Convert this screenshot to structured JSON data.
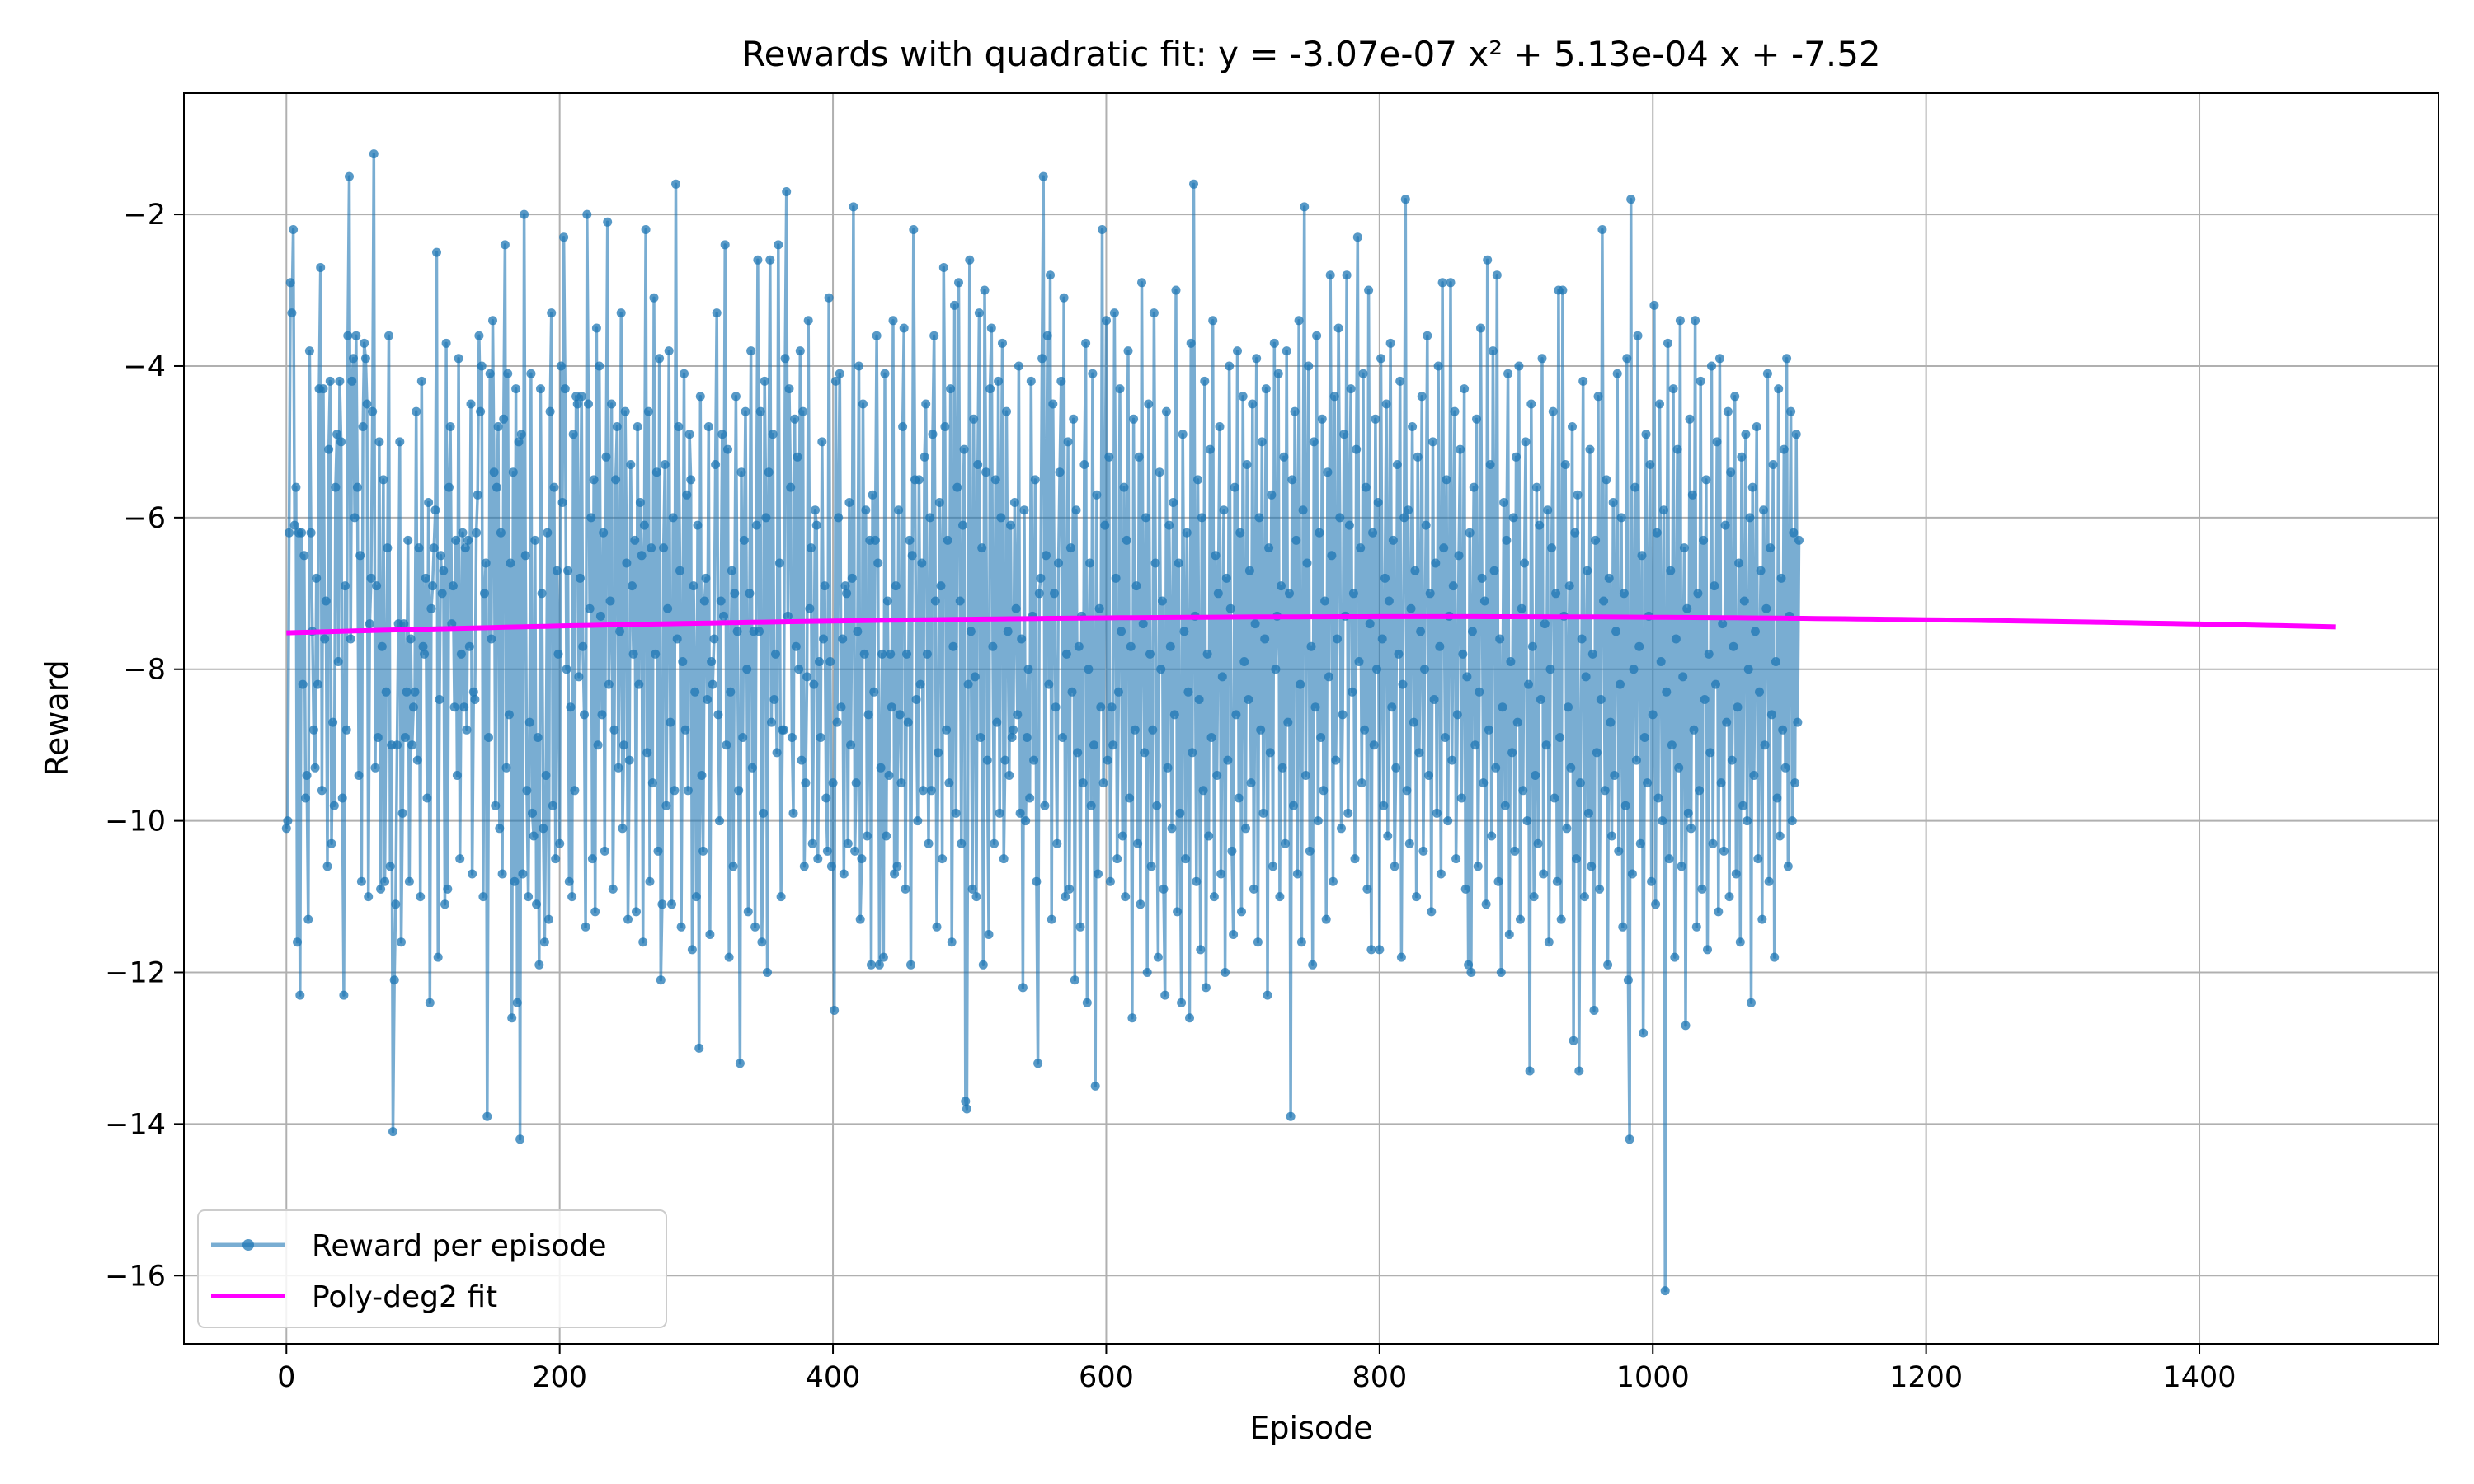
{
  "chart_data": {
    "type": "line",
    "title": "Rewards with quadratic fit: y = -3.07e-07 x² + 5.13e-04 x + -7.52",
    "xlabel": "Episode",
    "ylabel": "Reward",
    "xlim": [
      -75,
      1575
    ],
    "ylim": [
      -16.9,
      -0.4
    ],
    "xticks": [
      0,
      200,
      400,
      600,
      800,
      1000,
      1200,
      1400
    ],
    "yticks": [
      -16,
      -14,
      -12,
      -10,
      -8,
      -6,
      -4,
      -2
    ],
    "xtick_labels": [
      "0",
      "200",
      "400",
      "600",
      "800",
      "1000",
      "1200",
      "1400"
    ],
    "ytick_labels": [
      "−16",
      "−14",
      "−12",
      "−10",
      "−8",
      "−6",
      "−4",
      "−2"
    ],
    "grid": true,
    "legend_position": "lower-left",
    "series": [
      {
        "name": "Reward per episode",
        "kind": "line-with-markers",
        "color": "#1f77b4",
        "x_start": 0,
        "x_step": 1,
        "values": [
          -10.1,
          -10.0,
          -6.2,
          -2.9,
          -3.3,
          -2.2,
          -6.1,
          -5.6,
          -11.6,
          -6.2,
          -12.3,
          -6.2,
          -8.2,
          -6.5,
          -9.7,
          -9.4,
          -11.3,
          -3.8,
          -6.2,
          -7.5,
          -8.8,
          -9.3,
          -6.8,
          -8.2,
          -4.3,
          -2.7,
          -9.6,
          -4.3,
          -7.6,
          -7.1,
          -10.6,
          -5.1,
          -4.2,
          -10.3,
          -8.7,
          -9.8,
          -5.6,
          -4.9,
          -7.9,
          -4.2,
          -5.0,
          -9.7,
          -12.3,
          -6.9,
          -8.8,
          -3.6,
          -1.5,
          -7.6,
          -4.2,
          -3.9,
          -6.0,
          -3.6,
          -5.6,
          -9.4,
          -6.5,
          -10.8,
          -4.8,
          -3.7,
          -3.9,
          -4.5,
          -11.0,
          -7.4,
          -6.8,
          -4.6,
          -1.2,
          -9.3,
          -6.9,
          -8.9,
          -5.0,
          -10.9,
          -7.7,
          -5.5,
          -10.8,
          -8.3,
          -6.4,
          -3.6,
          -10.6,
          -9.0,
          -14.1,
          -12.1,
          -11.1,
          -9.0,
          -7.4,
          -5.0,
          -11.6,
          -9.9,
          -7.4,
          -8.9,
          -8.3,
          -6.3,
          -10.8,
          -7.6,
          -9.0,
          -8.5,
          -8.3,
          -4.6,
          -9.2,
          -6.4,
          -11.0,
          -4.2,
          -7.7,
          -7.8,
          -6.8,
          -9.7,
          -5.8,
          -12.4,
          -7.2,
          -6.9,
          -6.4,
          -5.9,
          -2.5,
          -11.8,
          -8.4,
          -6.5,
          -7.0,
          -6.7,
          -11.1,
          -3.7,
          -10.9,
          -5.6,
          -4.8,
          -7.4,
          -6.9,
          -8.5,
          -6.3,
          -9.4,
          -3.9,
          -10.5,
          -7.8,
          -6.2,
          -8.5,
          -6.4,
          -8.8,
          -6.3,
          -7.7,
          -4.5,
          -10.7,
          -8.3,
          -8.4,
          -6.2,
          -5.7,
          -3.6,
          -4.6,
          -4.0,
          -11.0,
          -7.0,
          -6.6,
          -13.9,
          -8.9,
          -4.1,
          -7.6,
          -3.4,
          -5.4,
          -9.8,
          -5.6,
          -4.8,
          -10.1,
          -6.2,
          -10.7,
          -4.7,
          -2.4,
          -9.3,
          -4.1,
          -8.6,
          -6.6,
          -12.6,
          -5.4,
          -10.8,
          -4.3,
          -12.4,
          -5.0,
          -14.2,
          -4.9,
          -10.7,
          -2.0,
          -6.5,
          -9.6,
          -11.0,
          -8.7,
          -4.1,
          -9.9,
          -10.2,
          -6.3,
          -11.1,
          -8.9,
          -11.9,
          -4.3,
          -7.0,
          -10.1,
          -11.6,
          -9.4,
          -6.2,
          -11.3,
          -4.6,
          -3.3,
          -9.8,
          -5.6,
          -10.5,
          -6.7,
          -7.8,
          -10.3,
          -4.0,
          -5.8,
          -2.3,
          -4.3,
          -8.0,
          -6.7,
          -10.8,
          -8.5,
          -11.0,
          -4.9,
          -9.6,
          -4.4,
          -4.5,
          -8.1,
          -6.8,
          -4.4,
          -7.7,
          -8.6,
          -11.4,
          -2.0,
          -4.5,
          -7.2,
          -6.0,
          -10.5,
          -5.5,
          -11.2,
          -3.5,
          -9.0,
          -4.0,
          -7.3,
          -8.6,
          -6.2,
          -10.4,
          -5.2,
          -2.1,
          -8.2,
          -7.1,
          -4.5,
          -10.9,
          -8.8,
          -5.5,
          -4.8,
          -9.3,
          -7.5,
          -3.3,
          -10.1,
          -9.0,
          -4.6,
          -6.6,
          -11.3,
          -9.2,
          -5.3,
          -6.9,
          -7.8,
          -6.3,
          -11.2,
          -4.8,
          -8.2,
          -5.8,
          -6.5,
          -11.6,
          -6.1,
          -2.2,
          -9.1,
          -4.6,
          -10.8,
          -6.4,
          -9.5,
          -3.1,
          -7.8,
          -5.4,
          -10.4,
          -3.9,
          -12.1,
          -11.1,
          -6.4,
          -5.3,
          -9.8,
          -7.2,
          -3.8,
          -8.7,
          -11.1,
          -6.0,
          -9.6,
          -1.6,
          -7.6,
          -4.8,
          -6.7,
          -11.4,
          -7.9,
          -4.1,
          -8.8,
          -5.7,
          -9.6,
          -4.9,
          -5.5,
          -11.7,
          -6.9,
          -8.3,
          -11.0,
          -6.1,
          -13.0,
          -4.4,
          -9.4,
          -10.4,
          -7.1,
          -6.8,
          -8.4,
          -4.8,
          -11.5,
          -7.9,
          -8.2,
          -7.6,
          -5.3,
          -3.3,
          -8.6,
          -10.0,
          -7.1,
          -4.9,
          -7.3,
          -2.4,
          -9.0,
          -5.1,
          -11.8,
          -8.3,
          -6.7,
          -10.6,
          -7.0,
          -4.4,
          -7.5,
          -9.6,
          -13.2,
          -5.4,
          -8.9,
          -6.3,
          -4.6,
          -8.0,
          -11.2,
          -7.0,
          -3.8,
          -9.3,
          -7.5,
          -11.4,
          -6.1,
          -2.6,
          -7.5,
          -4.6,
          -11.6,
          -9.9,
          -4.2,
          -6.0,
          -12.0,
          -5.4,
          -2.6,
          -8.7,
          -4.9,
          -8.4,
          -7.8,
          -9.1,
          -2.4,
          -6.6,
          -11.0,
          -8.8,
          -8.8,
          -3.9,
          -1.7,
          -7.3,
          -4.3,
          -5.6,
          -8.9,
          -9.9,
          -4.7,
          -7.7,
          -5.2,
          -8.0,
          -3.8,
          -9.2,
          -4.6,
          -10.6,
          -9.5,
          -8.1,
          -3.4,
          -7.2,
          -6.4,
          -10.3,
          -8.2,
          -5.9,
          -6.1,
          -10.5,
          -7.9,
          -8.9,
          -5.0,
          -7.6,
          -6.9,
          -9.7,
          -10.4,
          -3.1,
          -7.9,
          -10.6,
          -9.5,
          -12.5,
          -4.2,
          -8.7,
          -6.0,
          -4.1,
          -8.5,
          -7.6,
          -10.7,
          -6.9,
          -7.0,
          -10.3,
          -5.8,
          -9.0,
          -6.8,
          -1.9,
          -10.4,
          -9.5,
          -7.5,
          -4.0,
          -11.3,
          -10.5,
          -4.5,
          -7.8,
          -5.9,
          -10.2,
          -8.6,
          -6.3,
          -11.9,
          -5.7,
          -8.3,
          -6.3,
          -3.6,
          -6.6,
          -11.9,
          -9.3,
          -7.8,
          -11.8,
          -4.1,
          -10.2,
          -7.1,
          -9.4,
          -7.8,
          -8.5,
          -3.4,
          -10.7,
          -6.9,
          -10.6,
          -5.9,
          -8.6,
          -9.5,
          -4.8,
          -3.5,
          -10.9,
          -7.8,
          -8.7,
          -6.3,
          -11.9,
          -6.5,
          -2.2,
          -5.5,
          -8.4,
          -10.0,
          -5.5,
          -8.2,
          -6.6,
          -9.6,
          -5.2,
          -4.5,
          -7.8,
          -10.3,
          -6.0,
          -9.6,
          -4.9,
          -3.6,
          -7.1,
          -11.4,
          -9.1,
          -5.8,
          -6.9,
          -10.5,
          -2.7,
          -4.8,
          -8.8,
          -6.3,
          -9.5,
          -4.3,
          -11.6,
          -7.7,
          -3.2,
          -9.9,
          -5.6,
          -2.9,
          -7.1,
          -10.3,
          -6.1,
          -5.1,
          -13.7,
          -13.8,
          -8.2,
          -2.6,
          -7.5,
          -10.9,
          -4.7,
          -8.1,
          -11.0,
          -5.3,
          -3.3,
          -8.9,
          -6.4,
          -11.9,
          -3.0,
          -5.4,
          -9.2,
          -11.5,
          -4.3,
          -3.5,
          -7.7,
          -10.3,
          -5.5,
          -8.7,
          -4.2,
          -9.9,
          -6.0,
          -3.7,
          -10.5,
          -9.2,
          -4.6,
          -7.5,
          -9.4,
          -6.1,
          -8.9,
          -8.8,
          -5.8,
          -7.2,
          -8.6,
          -4.0,
          -9.9,
          -7.6,
          -12.2,
          -5.9,
          -10.0,
          -8.9,
          -8.0,
          -9.7,
          -4.2,
          -7.3,
          -9.2,
          -5.5,
          -10.8,
          -13.2,
          -7.0,
          -6.8,
          -3.9,
          -1.5,
          -9.8,
          -6.5,
          -3.6,
          -8.2,
          -2.8,
          -11.3,
          -4.5,
          -7.0,
          -8.5,
          -10.3,
          -6.6,
          -5.4,
          -4.2,
          -8.9,
          -3.1,
          -11.0,
          -7.8,
          -5.0,
          -10.9,
          -6.4,
          -8.3,
          -4.7,
          -12.1,
          -5.9,
          -9.1,
          -7.7,
          -11.4,
          -7.3,
          -9.5,
          -5.3,
          -3.7,
          -12.4,
          -8.0,
          -6.6,
          -9.8,
          -4.1,
          -9.0,
          -13.5,
          -5.7,
          -10.7,
          -7.2,
          -8.5,
          -2.2,
          -9.5,
          -6.1,
          -3.4,
          -9.2,
          -5.2,
          -10.8,
          -8.5,
          -9.0,
          -3.3,
          -6.8,
          -10.5,
          -8.3,
          -4.3,
          -7.5,
          -10.2,
          -5.6,
          -11.0,
          -6.3,
          -3.8,
          -9.7,
          -7.7,
          -12.6,
          -4.7,
          -8.8,
          -6.9,
          -10.3,
          -5.2,
          -11.1,
          -2.9,
          -7.4,
          -9.1,
          -6.0,
          -12.0,
          -4.5,
          -7.8,
          -10.6,
          -8.8,
          -3.3,
          -6.6,
          -9.8,
          -11.8,
          -5.4,
          -8.0,
          -7.1,
          -10.9,
          -12.3,
          -4.6,
          -9.3,
          -6.1,
          -7.7,
          -10.1,
          -5.8,
          -8.6,
          -3.0,
          -11.2,
          -6.6,
          -9.9,
          -12.4,
          -4.9,
          -7.5,
          -10.5,
          -6.2,
          -8.3,
          -12.6,
          -3.7,
          -9.1,
          -1.6,
          -7.3,
          -10.8,
          -5.5,
          -8.4,
          -11.7,
          -6.0,
          -9.6,
          -4.2,
          -12.2,
          -7.8,
          -10.2,
          -5.1,
          -8.9,
          -3.4,
          -11.0,
          -6.5,
          -9.4,
          -7.0,
          -4.8,
          -10.7,
          -8.1,
          -5.9,
          -12.0,
          -6.8,
          -9.2,
          -4.0,
          -7.2,
          -10.4,
          -11.5,
          -5.6,
          -8.6,
          -3.8,
          -9.7,
          -6.2,
          -11.2,
          -4.4,
          -7.9,
          -10.1,
          -5.3,
          -8.4,
          -6.7,
          -9.5,
          -4.5,
          -10.9,
          -7.4,
          -3.9,
          -11.6,
          -6.0,
          -8.8,
          -5.0,
          -9.9,
          -7.6,
          -4.3,
          -12.3,
          -6.4,
          -9.1,
          -5.7,
          -10.6,
          -3.7,
          -8.0,
          -7.3,
          -4.1,
          -11.0,
          -6.9,
          -9.3,
          -5.2,
          -10.3,
          -3.8,
          -8.7,
          -7.0,
          -13.9,
          -5.5,
          -9.8,
          -4.6,
          -6.3,
          -10.7,
          -3.4,
          -8.2,
          -11.6,
          -5.9,
          -1.9,
          -9.4,
          -6.6,
          -4.0,
          -10.4,
          -7.7,
          -11.9,
          -5.0,
          -8.5,
          -3.6,
          -10.0,
          -6.2,
          -8.9,
          -4.7,
          -9.6,
          -7.1,
          -11.3,
          -5.4,
          -8.1,
          -2.8,
          -6.5,
          -10.8,
          -4.4,
          -9.2,
          -7.6,
          -3.5,
          -6.0,
          -10.1,
          -8.6,
          -4.9,
          -7.3,
          -2.8,
          -9.9,
          -6.1,
          -4.3,
          -8.3,
          -7.0,
          -10.5,
          -5.1,
          -2.3,
          -7.9,
          -6.4,
          -9.5,
          -4.1,
          -8.8,
          -5.6,
          -10.9,
          -3.0,
          -7.4,
          -11.7,
          -6.2,
          -9.0,
          -4.7,
          -8.0,
          -5.8,
          -11.7,
          -3.9,
          -7.6,
          -9.8,
          -6.8,
          -4.5,
          -10.2,
          -7.1,
          -3.7,
          -8.5,
          -6.3,
          -10.6,
          -9.3,
          -5.3,
          -7.8,
          -4.2,
          -11.8,
          -8.2,
          -6.0,
          -1.8,
          -9.6,
          -5.9,
          -10.3,
          -7.2,
          -4.8,
          -8.7,
          -6.7,
          -11.0,
          -5.2,
          -9.1,
          -7.5,
          -4.4,
          -10.4,
          -8.0,
          -6.1,
          -3.6,
          -9.4,
          -7.0,
          -11.2,
          -5.0,
          -8.4,
          -6.6,
          -9.9,
          -4.0,
          -7.7,
          -10.7,
          -2.9,
          -6.4,
          -8.9,
          -5.5,
          -10.0,
          -7.3,
          -2.9,
          -9.2,
          -6.9,
          -4.6,
          -10.5,
          -8.6,
          -6.5,
          -5.1,
          -9.7,
          -7.8,
          -4.3,
          -10.9,
          -8.1,
          -11.9,
          -6.2,
          -12.0,
          -7.5,
          -5.6,
          -9.0,
          -4.7,
          -10.6,
          -8.3,
          -3.5,
          -6.8,
          -9.5,
          -7.1,
          -11.1,
          -2.6,
          -8.8,
          -5.3,
          -10.2,
          -3.8,
          -6.7,
          -9.3,
          -2.8,
          -10.8,
          -7.6,
          -12.0,
          -8.5,
          -5.8,
          -9.8,
          -6.3,
          -4.1,
          -11.5,
          -7.9,
          -9.1,
          -6.0,
          -10.4,
          -5.2,
          -8.7,
          -4.0,
          -11.3,
          -7.2,
          -9.6,
          -6.6,
          -5.0,
          -10.0,
          -8.2,
          -13.3,
          -4.5,
          -7.7,
          -11.0,
          -9.4,
          -5.6,
          -10.3,
          -6.1,
          -8.4,
          -3.9,
          -10.7,
          -7.4,
          -9.0,
          -5.9,
          -11.6,
          -8.0,
          -6.4,
          -4.6,
          -9.7,
          -7.0,
          -10.8,
          -3.0,
          -8.9,
          -11.3,
          -3.0,
          -7.3,
          -5.3,
          -10.1,
          -8.5,
          -6.9,
          -9.3,
          -4.8,
          -12.9,
          -6.2,
          -10.5,
          -5.7,
          -13.3,
          -9.5,
          -7.6,
          -4.2,
          -11.0,
          -8.1,
          -6.7,
          -9.9,
          -5.1,
          -10.6,
          -7.8,
          -12.5,
          -6.3,
          -9.1,
          -4.4,
          -10.9,
          -8.4,
          -2.2,
          -7.1,
          -9.6,
          -5.5,
          -11.9,
          -6.8,
          -8.7,
          -10.2,
          -5.8,
          -9.4,
          -7.5,
          -4.1,
          -10.4,
          -8.2,
          -6.0,
          -11.4,
          -7.0,
          -9.8,
          -3.9,
          -12.1,
          -14.2,
          -1.8,
          -10.7,
          -8.0,
          -5.6,
          -9.2,
          -3.6,
          -7.7,
          -10.3,
          -6.5,
          -12.8,
          -8.9,
          -4.9,
          -9.5,
          -7.3,
          -5.3,
          -10.8,
          -8.6,
          -3.2,
          -11.1,
          -6.2,
          -9.7,
          -4.5,
          -7.9,
          -10.0,
          -5.9,
          -16.2,
          -8.3,
          -3.7,
          -10.5,
          -6.7,
          -9.0,
          -4.3,
          -11.8,
          -7.6,
          -5.1,
          -9.3,
          -3.4,
          -10.6,
          -8.1,
          -6.4,
          -12.7,
          -7.2,
          -9.9,
          -4.7,
          -10.1,
          -5.7,
          -8.8,
          -3.4,
          -11.4,
          -7.0,
          -9.6,
          -4.2,
          -10.9,
          -6.3,
          -8.4,
          -5.5,
          -11.7,
          -7.8,
          -9.1,
          -4.0,
          -10.3,
          -6.9,
          -8.2,
          -5.0,
          -11.2,
          -3.9,
          -9.5,
          -7.4,
          -10.4,
          -6.1,
          -8.7,
          -4.6,
          -11.0,
          -5.4,
          -9.2,
          -7.7,
          -4.4,
          -10.7,
          -8.5,
          -6.6,
          -11.6,
          -5.2,
          -9.8,
          -7.1,
          -4.9,
          -10.0,
          -8.0,
          -6.0,
          -12.4,
          -5.6,
          -9.4,
          -7.5,
          -4.8,
          -10.5,
          -8.3,
          -6.7,
          -11.3,
          -5.9,
          -9.0,
          -7.2,
          -4.1,
          -10.8,
          -6.4,
          -8.6,
          -5.3,
          -11.8,
          -7.9,
          -9.7,
          -4.3,
          -10.2,
          -6.8,
          -8.8,
          -5.1,
          -9.3,
          -3.9,
          -10.6,
          -7.3,
          -4.6,
          -10.0,
          -6.2,
          -9.5,
          -4.9,
          -8.7,
          -6.3
        ]
      },
      {
        "name": "Poly-deg2 fit",
        "kind": "quadratic",
        "color": "#ff00ff",
        "coefficients": {
          "a": -3.07e-07,
          "b": 0.000513,
          "c": -7.52
        },
        "x_range": [
          0,
          1500
        ]
      }
    ]
  }
}
